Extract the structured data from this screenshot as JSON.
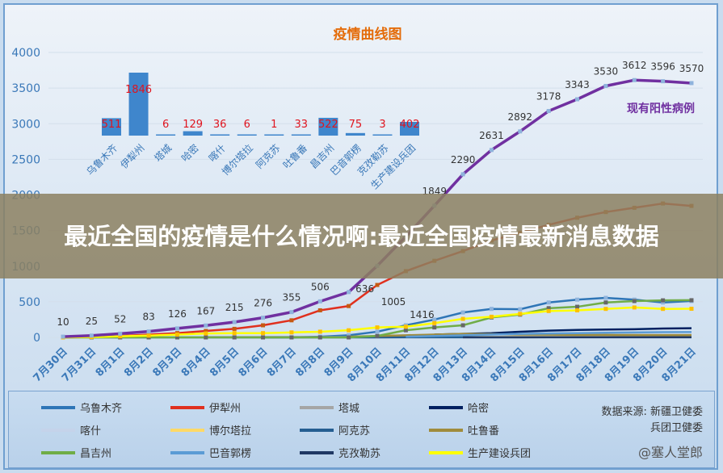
{
  "banner": {
    "text": "最近全国的疫情是什么情况啊:最近全国疫情最新消息数据"
  },
  "source": {
    "line1": "数据来源:  新疆卫健委",
    "line2": "兵团卫健委",
    "watermark": "@塞人堂郎"
  },
  "chart_data": [
    {
      "type": "line",
      "title": "疫情曲线图",
      "ylim": [
        0,
        4000
      ],
      "yticks": [
        0,
        500,
        1000,
        1500,
        2000,
        2500,
        3000,
        3500,
        4000
      ],
      "x": [
        "7月30日",
        "7月31日",
        "8月1日",
        "8月2日",
        "8月3日",
        "8月4日",
        "8月5日",
        "8月6日",
        "8月7日",
        "8月8日",
        "8月9日",
        "8月10日",
        "8月11日",
        "8月12日",
        "8月13日",
        "8月14日",
        "8月15日",
        "8月16日",
        "8月17日",
        "8月18日",
        "8月19日",
        "8月20日",
        "8月21日"
      ],
      "grid": true,
      "legend": "bottom",
      "series": [
        {
          "name": "现有阳性病例",
          "color": "#7030a0",
          "labeled": true,
          "values": [
            10,
            25,
            52,
            83,
            126,
            167,
            215,
            276,
            355,
            506,
            636,
            1005,
            1416,
            1849,
            2290,
            2631,
            2892,
            3178,
            3343,
            3530,
            3612,
            3596,
            3570
          ]
        },
        {
          "name": "乌鲁木齐",
          "color": "#2e75b6",
          "values": [
            0,
            0,
            0,
            0,
            0,
            0,
            0,
            0,
            0,
            10,
            30,
            80,
            170,
            250,
            350,
            400,
            395,
            490,
            530,
            555,
            530,
            490,
            511
          ]
        },
        {
          "name": "伊犁州",
          "color": "#e0301e",
          "values": [
            0,
            5,
            20,
            40,
            60,
            90,
            120,
            170,
            240,
            380,
            440,
            736,
            930,
            1075,
            1212,
            1360,
            1470,
            1580,
            1680,
            1760,
            1820,
            1880,
            1846
          ]
        },
        {
          "name": "塔城",
          "color": "#a5a5a5",
          "values": [
            null,
            null,
            null,
            null,
            null,
            6,
            6,
            6,
            6,
            6,
            6,
            6,
            6,
            6,
            6,
            6,
            6,
            6,
            6,
            6,
            6,
            6,
            6
          ]
        },
        {
          "name": "哈密",
          "color": "#002060",
          "values": [
            null,
            null,
            null,
            null,
            null,
            null,
            null,
            null,
            null,
            null,
            null,
            null,
            null,
            40,
            50,
            60,
            80,
            95,
            105,
            110,
            115,
            125,
            129
          ]
        },
        {
          "name": "喀什",
          "color": "#c5d3ea",
          "values": [
            null,
            null,
            null,
            null,
            null,
            null,
            null,
            null,
            null,
            null,
            null,
            0,
            5,
            10,
            15,
            20,
            25,
            30,
            30,
            32,
            34,
            35,
            36
          ]
        },
        {
          "name": "博尔塔拉",
          "color": "#ffd966",
          "values": [
            null,
            null,
            null,
            null,
            null,
            null,
            null,
            null,
            null,
            null,
            null,
            null,
            2,
            3,
            4,
            5,
            5,
            6,
            6,
            6,
            6,
            6,
            6
          ]
        },
        {
          "name": "阿克苏",
          "color": "#255e91",
          "values": [
            null,
            null,
            null,
            null,
            null,
            null,
            null,
            0,
            0,
            0,
            0,
            0,
            1,
            1,
            1,
            1,
            1,
            1,
            1,
            1,
            1,
            1,
            1
          ]
        },
        {
          "name": "吐鲁番",
          "color": "#a08c3c",
          "values": [
            null,
            null,
            null,
            null,
            null,
            null,
            null,
            null,
            null,
            null,
            10,
            20,
            30,
            40,
            50,
            45,
            40,
            38,
            36,
            35,
            34,
            33,
            33
          ]
        },
        {
          "name": "昌吉州",
          "color": "#70ad47",
          "values": [
            0,
            0,
            0,
            0,
            0,
            0,
            0,
            0,
            0,
            0,
            0,
            20,
            100,
            140,
            170,
            280,
            320,
            410,
            430,
            490,
            510,
            520,
            522
          ]
        },
        {
          "name": "巴音郭楞",
          "color": "#5b9bd5",
          "values": [
            null,
            null,
            null,
            null,
            null,
            null,
            null,
            null,
            null,
            null,
            null,
            null,
            10,
            20,
            30,
            40,
            50,
            55,
            60,
            65,
            70,
            73,
            75
          ]
        },
        {
          "name": "克孜勒苏",
          "color": "#203864",
          "values": [
            null,
            null,
            null,
            null,
            null,
            null,
            null,
            null,
            null,
            null,
            null,
            null,
            null,
            null,
            1,
            2,
            2,
            3,
            3,
            3,
            3,
            3,
            3
          ]
        },
        {
          "name": "生产建设兵团",
          "color": "#ffff00",
          "values": [
            0,
            5,
            15,
            25,
            40,
            55,
            60,
            60,
            70,
            80,
            100,
            140,
            150,
            200,
            260,
            290,
            330,
            370,
            380,
            400,
            420,
            400,
            402
          ]
        }
      ]
    },
    {
      "type": "bar",
      "categories": [
        "乌鲁木齐",
        "伊犁州",
        "塔城",
        "哈密",
        "喀什",
        "博尔塔拉",
        "阿克苏",
        "吐鲁番",
        "昌吉州",
        "巴音郭楞",
        "克孜勒苏",
        "生产建设兵团"
      ],
      "values": [
        511,
        1846,
        6,
        129,
        36,
        6,
        1,
        33,
        522,
        75,
        3,
        402
      ],
      "color": "#3f86cc",
      "label_color": "#e0141e"
    }
  ]
}
